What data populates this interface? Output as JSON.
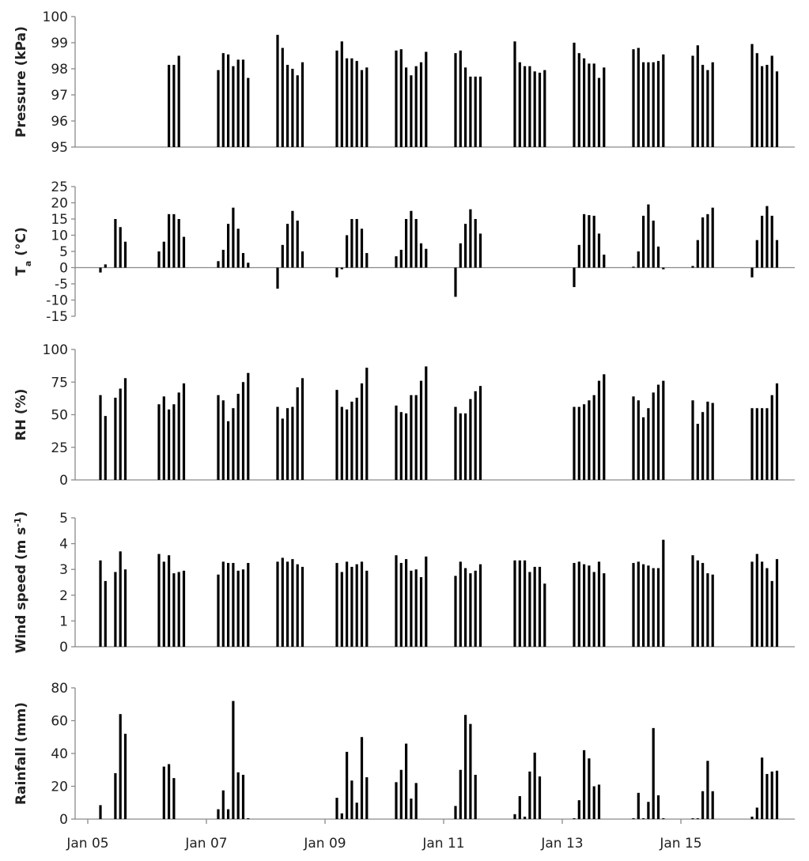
{
  "chart_data": [
    {
      "type": "bar",
      "ylabel_parts": [
        {
          "t": "Pressure (kPa)",
          "sup": false
        }
      ],
      "ylim": [
        95,
        100
      ],
      "yticks": [
        95,
        96,
        97,
        98,
        99,
        100
      ],
      "yticklabels": [
        "95",
        "96",
        "97",
        "98",
        "99",
        "100"
      ],
      "groups": [
        [
          null,
          null,
          null,
          null,
          null,
          null
        ],
        [
          null,
          null,
          98.15,
          98.15,
          98.5,
          null
        ],
        [
          97.95,
          98.6,
          98.55,
          98.1,
          98.35,
          98.35,
          97.65
        ],
        [
          99.3,
          98.8,
          98.15,
          98.0,
          97.75,
          98.25
        ],
        [
          98.7,
          99.05,
          98.4,
          98.4,
          98.3,
          97.95,
          98.05
        ],
        [
          98.7,
          98.75,
          98.05,
          97.75,
          98.1,
          98.25,
          98.65
        ],
        [
          98.6,
          98.7,
          98.05,
          97.7,
          97.7,
          97.7
        ],
        [
          99.05,
          98.25,
          98.1,
          98.1,
          97.9,
          97.85,
          97.95
        ],
        [
          99.0,
          98.6,
          98.4,
          98.2,
          98.2,
          97.65,
          98.05
        ],
        [
          98.75,
          98.8,
          98.25,
          98.25,
          98.25,
          98.3,
          98.55
        ],
        [
          98.5,
          98.9,
          98.15,
          97.95,
          98.25
        ],
        [
          98.95,
          98.6,
          98.1,
          98.15,
          98.5,
          97.9
        ]
      ]
    },
    {
      "type": "bar",
      "ylabel_parts": [
        {
          "t": "T",
          "sup": false
        },
        {
          "t": "a",
          "sub": true
        },
        {
          "t": " (°C)",
          "sup": false
        }
      ],
      "ylim": [
        -15,
        25
      ],
      "yticks": [
        -15,
        -10,
        -5,
        0,
        5,
        10,
        15,
        20,
        25
      ],
      "yticklabels": [
        "-15",
        "-10",
        "-5",
        "0",
        "5",
        "10",
        "15",
        "20",
        "25"
      ],
      "groups": [
        [
          -1.5,
          1.0,
          null,
          15.0,
          12.5,
          8.0
        ],
        [
          5.0,
          8.0,
          16.5,
          16.5,
          15.0,
          9.5
        ],
        [
          2.0,
          5.5,
          13.5,
          18.5,
          12.0,
          4.5,
          1.5
        ],
        [
          -6.5,
          7.0,
          13.5,
          17.5,
          14.5,
          5.0
        ],
        [
          -3.0,
          -0.5,
          10.0,
          15.0,
          15.0,
          12.0,
          4.5
        ],
        [
          3.5,
          5.5,
          15.0,
          17.5,
          15.0,
          7.5,
          5.8
        ],
        [
          -9.0,
          7.5,
          13.5,
          18.0,
          15.0,
          10.5
        ],
        [
          null,
          null,
          null,
          null,
          null,
          null,
          null
        ],
        [
          -6.0,
          7.0,
          16.5,
          16.2,
          16.0,
          10.5,
          4.0
        ],
        [
          0.3,
          5.0,
          16.0,
          19.5,
          14.5,
          6.5,
          -0.5
        ],
        [
          0.5,
          8.5,
          15.5,
          16.5,
          18.5
        ],
        [
          -3.0,
          8.5,
          16.0,
          19.0,
          16.0,
          8.5
        ]
      ]
    },
    {
      "type": "bar",
      "ylabel_parts": [
        {
          "t": "RH (%)",
          "sup": false
        }
      ],
      "ylim": [
        0,
        100
      ],
      "yticks": [
        0,
        25,
        50,
        75,
        100
      ],
      "yticklabels": [
        "0",
        "25",
        "50",
        "75",
        "100"
      ],
      "groups": [
        [
          65,
          49,
          null,
          63,
          70,
          78
        ],
        [
          58,
          64,
          54,
          58,
          67,
          74
        ],
        [
          65,
          61,
          45,
          55,
          66,
          75,
          82
        ],
        [
          56,
          47,
          55,
          56,
          71,
          78
        ],
        [
          69,
          56,
          54,
          60,
          63,
          74,
          86
        ],
        [
          57,
          52,
          51,
          65,
          65,
          76,
          87
        ],
        [
          56,
          51,
          51,
          62,
          68,
          72
        ],
        [
          null,
          null,
          null,
          null,
          null,
          null,
          null
        ],
        [
          56,
          56,
          58,
          61,
          65,
          76,
          81
        ],
        [
          64,
          61,
          48,
          55,
          67,
          73,
          76
        ],
        [
          61,
          43,
          52,
          60,
          59
        ],
        [
          55,
          55,
          55,
          55,
          65,
          74
        ]
      ]
    },
    {
      "type": "bar",
      "ylabel_parts": [
        {
          "t": "Wind speed (m s",
          "sup": false
        },
        {
          "t": "-1",
          "sup": true
        },
        {
          "t": ")",
          "sup": false
        }
      ],
      "ylim": [
        0,
        5
      ],
      "yticks": [
        0,
        1,
        2,
        3,
        4,
        5
      ],
      "yticklabels": [
        "0",
        "1",
        "2",
        "3",
        "4",
        "5"
      ],
      "groups": [
        [
          3.35,
          2.55,
          null,
          2.9,
          3.7,
          3.0
        ],
        [
          3.6,
          3.3,
          3.55,
          2.85,
          2.9,
          2.95
        ],
        [
          2.8,
          3.3,
          3.25,
          3.25,
          2.95,
          3.0,
          3.25
        ],
        [
          3.3,
          3.45,
          3.3,
          3.4,
          3.2,
          3.1
        ],
        [
          3.25,
          2.9,
          3.3,
          3.1,
          3.2,
          3.3,
          2.95
        ],
        [
          3.55,
          3.25,
          3.4,
          2.95,
          3.0,
          2.7,
          3.5
        ],
        [
          2.75,
          3.3,
          3.05,
          2.85,
          2.95,
          3.2
        ],
        [
          3.35,
          3.35,
          3.35,
          2.9,
          3.1,
          3.1,
          2.45
        ],
        [
          3.25,
          3.3,
          3.2,
          3.15,
          2.9,
          3.3,
          2.85
        ],
        [
          3.25,
          3.3,
          3.2,
          3.15,
          3.05,
          3.05,
          4.15
        ],
        [
          3.55,
          3.35,
          3.25,
          2.85,
          2.8
        ],
        [
          3.3,
          3.6,
          3.3,
          3.05,
          2.55,
          3.4
        ]
      ]
    },
    {
      "type": "bar",
      "ylabel_parts": [
        {
          "t": "Rainfall (mm)",
          "sup": false
        }
      ],
      "ylim": [
        0,
        80
      ],
      "yticks": [
        0,
        20,
        40,
        60,
        80
      ],
      "yticklabels": [
        "0",
        "20",
        "40",
        "60",
        "80"
      ],
      "groups": [
        [
          8.5,
          null,
          null,
          28,
          64,
          52
        ],
        [
          null,
          32,
          33.5,
          25,
          null,
          null
        ],
        [
          6,
          17.5,
          6,
          72,
          28.5,
          27,
          0.5
        ],
        [
          null,
          null,
          null,
          null,
          null,
          null
        ],
        [
          13,
          3.5,
          41,
          23.5,
          10,
          50,
          25.5
        ],
        [
          22.5,
          30,
          46,
          12.5,
          22,
          null,
          null
        ],
        [
          8,
          30,
          63.5,
          58,
          27,
          null
        ],
        [
          3,
          14,
          1.5,
          29,
          40.5,
          26,
          null
        ],
        [
          0.5,
          11.5,
          42,
          37,
          20,
          21,
          null
        ],
        [
          0.5,
          16,
          0.5,
          10.5,
          55.5,
          14.5,
          0.5
        ],
        [
          0.5,
          0.5,
          17,
          35.5,
          17
        ],
        [
          1.5,
          7,
          37.5,
          27.5,
          29,
          29.5
        ]
      ]
    }
  ],
  "group_starts": [
    "Jan 05 09:00",
    "Jan 06 09:00",
    "Jan 07 09:00",
    "Jan 08 09:00",
    "Jan 09 09:00",
    "Jan 10 09:00",
    "Jan 11 09:00",
    "Jan 12 09:00",
    "Jan 13 09:00",
    "Jan 14 09:00",
    "Jan 15 09:00",
    "Jan 16 09:00"
  ],
  "x_ticks": [
    {
      "label": "Jan 05"
    },
    {
      "label": "Jan 07"
    },
    {
      "label": "Jan 09"
    },
    {
      "label": "Jan 11"
    },
    {
      "label": "Jan 13"
    },
    {
      "label": "Jan 15"
    }
  ]
}
